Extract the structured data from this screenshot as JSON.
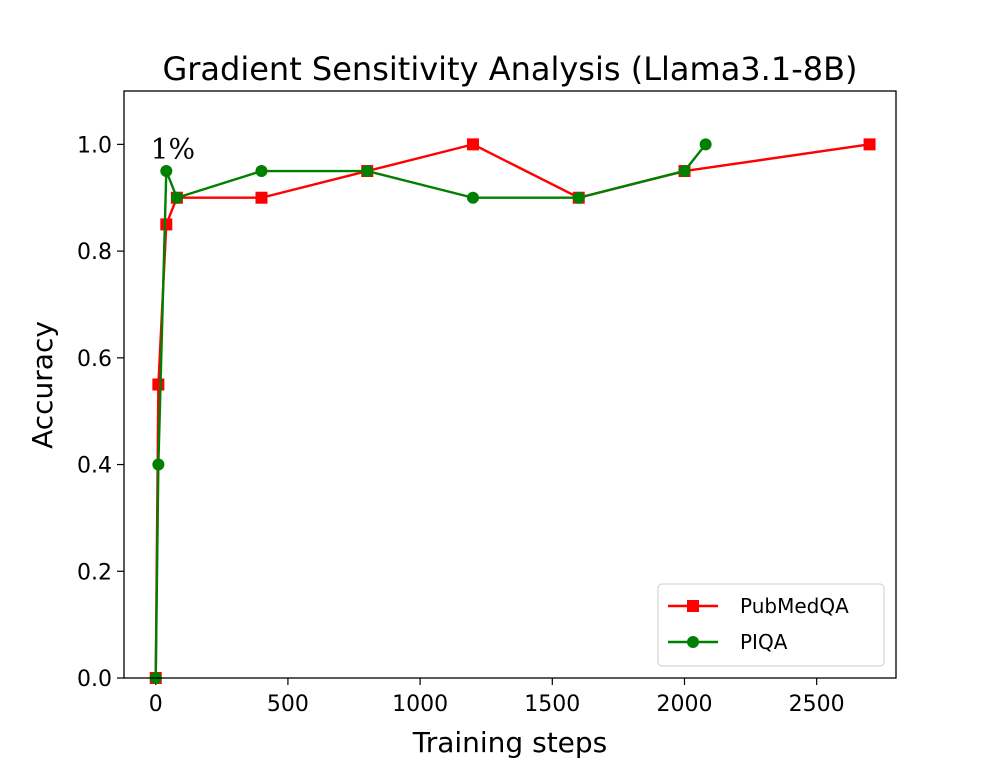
{
  "chart_data": {
    "type": "line",
    "title": "Gradient Sensitivity Analysis (Llama3.1-8B)",
    "xlabel": "Training steps",
    "ylabel": "Accuracy",
    "xlim": [
      -120,
      2800
    ],
    "ylim": [
      0.0,
      1.1
    ],
    "xticks": [
      0,
      500,
      1000,
      1500,
      2000,
      2500
    ],
    "xtick_labels": [
      "0",
      "500",
      "1000",
      "1500",
      "2000",
      "2500"
    ],
    "yticks": [
      0.0,
      0.2,
      0.4,
      0.6,
      0.8,
      1.0
    ],
    "ytick_labels": [
      "0.0",
      "0.2",
      "0.4",
      "0.6",
      "0.8",
      "1.0"
    ],
    "grid": false,
    "legend_position": "lower-right",
    "series": [
      {
        "name": "PubMedQA",
        "color": "#ff0000",
        "marker": "square",
        "x": [
          0,
          10,
          40,
          80,
          400,
          800,
          1200,
          1600,
          2000,
          2700
        ],
        "y": [
          0.0,
          0.55,
          0.85,
          0.9,
          0.9,
          0.95,
          1.0,
          0.9,
          0.95,
          1.0
        ]
      },
      {
        "name": "PIQA",
        "color": "#008000",
        "marker": "circle",
        "x": [
          0,
          10,
          40,
          80,
          400,
          800,
          1200,
          1600,
          2000,
          2080
        ],
        "y": [
          0.0,
          0.4,
          0.95,
          0.9,
          0.95,
          0.95,
          0.9,
          0.9,
          0.95,
          1.0
        ]
      }
    ],
    "annotations": [
      {
        "text": "1%",
        "x": 80,
        "y": 1.0
      }
    ]
  }
}
